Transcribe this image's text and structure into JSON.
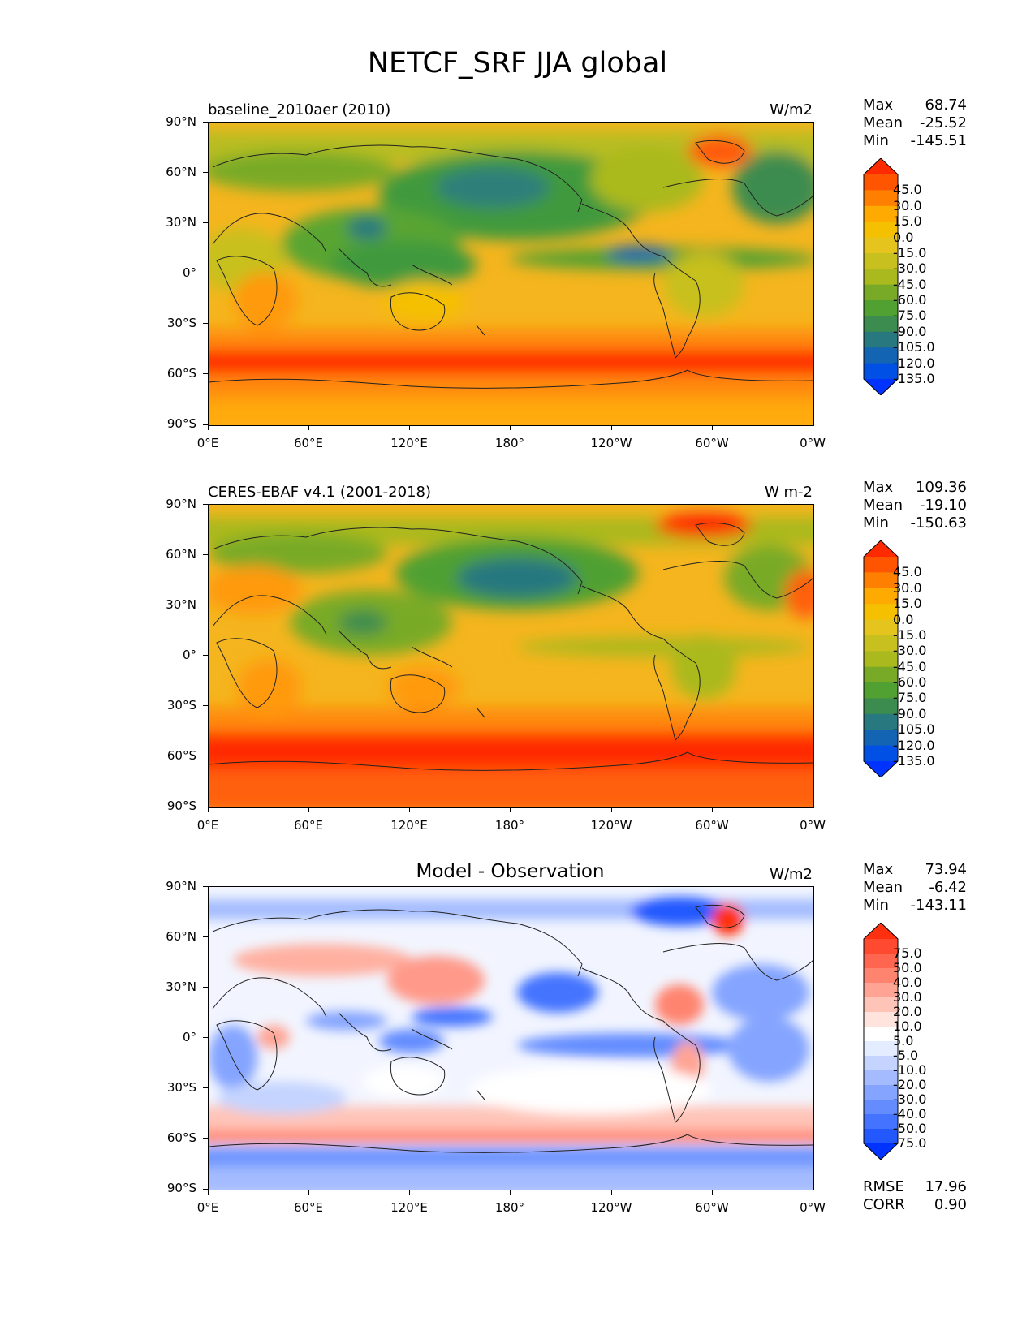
{
  "title": "NETCF_SRF JJA global",
  "lat_labels": [
    "90°N",
    "60°N",
    "30°N",
    "0°",
    "30°S",
    "60°S",
    "90°S"
  ],
  "lon_labels": [
    "0°E",
    "60°E",
    "120°E",
    "180°",
    "120°W",
    "60°W",
    "0°W"
  ],
  "panels": [
    {
      "name": "baseline_2010aer (2010)",
      "units": "W/m2",
      "stats": [
        {
          "label": "Max",
          "value": "68.74"
        },
        {
          "label": "Mean",
          "value": "-25.52"
        },
        {
          "label": "Min",
          "value": "-145.51"
        }
      ],
      "colorbar_labels": [
        "45.0",
        "30.0",
        "15.0",
        "0.0",
        "-15.0",
        "-30.0",
        "-45.0",
        "-60.0",
        "-75.0",
        "-90.0",
        "-105.0",
        "-120.0",
        "-135.0"
      ],
      "colorbar_colors": [
        "#ff2a00",
        "#ff5500",
        "#ff8000",
        "#ffaa00",
        "#f5c000",
        "#e6c41e",
        "#c8c01e",
        "#aab91e",
        "#78aa28",
        "#50a032",
        "#3c8c50",
        "#28787f",
        "#1464b4",
        "#0050e6",
        "#0033ff"
      ]
    },
    {
      "name": "CERES-EBAF v4.1 (2001-2018)",
      "units": "W m-2",
      "stats": [
        {
          "label": "Max",
          "value": "109.36"
        },
        {
          "label": "Mean",
          "value": "-19.10"
        },
        {
          "label": "Min",
          "value": "-150.63"
        }
      ],
      "colorbar_labels": [
        "45.0",
        "30.0",
        "15.0",
        "0.0",
        "-15.0",
        "-30.0",
        "-45.0",
        "-60.0",
        "-75.0",
        "-90.0",
        "-105.0",
        "-120.0",
        "-135.0"
      ],
      "colorbar_colors": [
        "#ff2a00",
        "#ff5500",
        "#ff8000",
        "#ffaa00",
        "#f5c000",
        "#e6c41e",
        "#c8c01e",
        "#aab91e",
        "#78aa28",
        "#50a032",
        "#3c8c50",
        "#28787f",
        "#1464b4",
        "#0050e6",
        "#0033ff"
      ]
    },
    {
      "name": "Model - Observation",
      "units": "W/m2",
      "stats": [
        {
          "label": "Max",
          "value": "73.94"
        },
        {
          "label": "Mean",
          "value": "-6.42"
        },
        {
          "label": "Min",
          "value": "-143.11"
        }
      ],
      "colorbar_labels": [
        "75.0",
        "50.0",
        "40.0",
        "30.0",
        "20.0",
        "10.0",
        "5.0",
        "-5.0",
        "-10.0",
        "-20.0",
        "-30.0",
        "-40.0",
        "-50.0",
        "-75.0"
      ],
      "colorbar_colors": [
        "#ff3010",
        "#ff4a30",
        "#ff6650",
        "#ff8470",
        "#ffa494",
        "#ffc4b8",
        "#ffe4de",
        "#ffffff",
        "#e4ecff",
        "#c4d4ff",
        "#a4bcff",
        "#84a4ff",
        "#648cff",
        "#4474ff",
        "#2458ff",
        "#0033ff"
      ]
    }
  ],
  "rmse": {
    "label": "RMSE",
    "value": "17.96"
  },
  "corr": {
    "label": "CORR",
    "value": "0.90"
  }
}
